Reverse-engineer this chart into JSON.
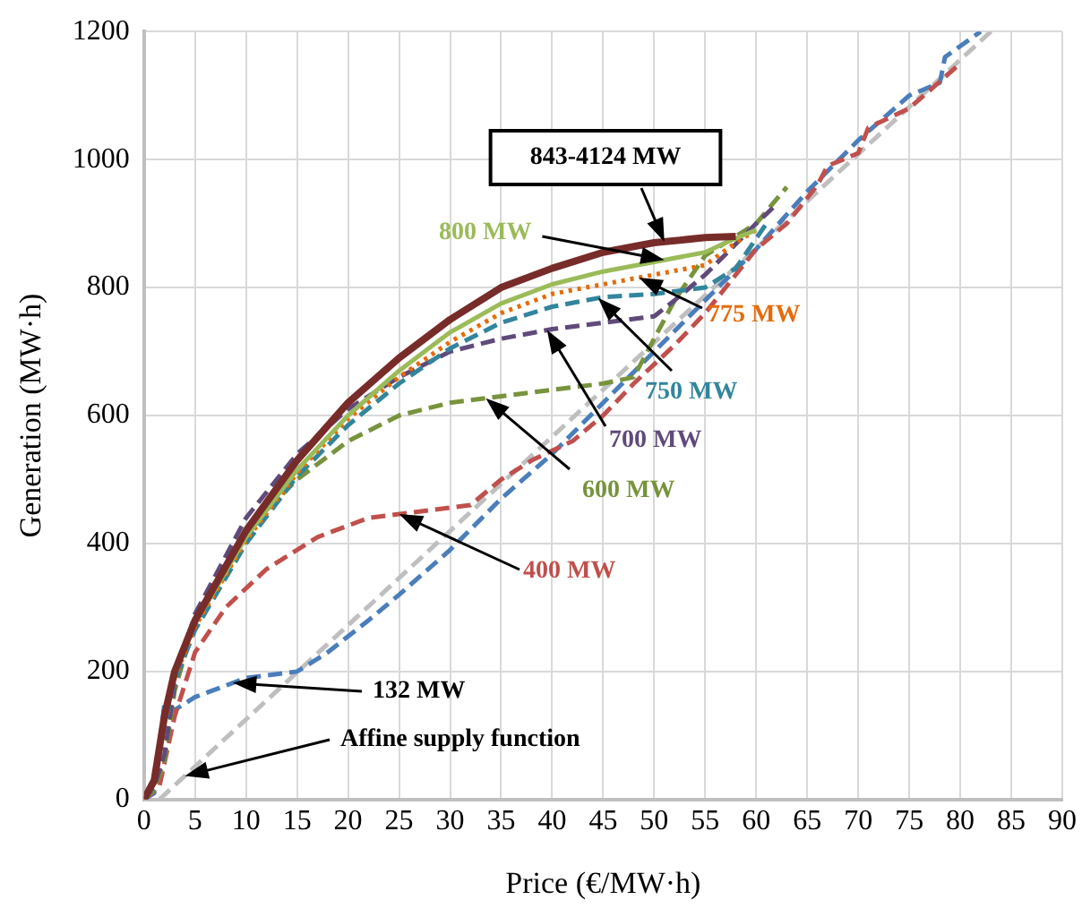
{
  "chart_data": {
    "type": "line",
    "xlabel": "Price (€/MW·h)",
    "ylabel": "Generation (MW·h)",
    "xlim": [
      0,
      90
    ],
    "xticks": [
      0,
      5,
      10,
      15,
      20,
      25,
      30,
      35,
      40,
      45,
      50,
      55,
      60,
      65,
      70,
      75,
      80,
      85,
      90
    ],
    "ylim": [
      0,
      1200
    ],
    "yticks": [
      0,
      200,
      400,
      600,
      800,
      1000,
      1200
    ],
    "grid": true,
    "legend": false,
    "marker": "none",
    "series": [
      {
        "name": "843-4124 MW",
        "color": "#772c2a",
        "line_style": "solid",
        "x": [
          0,
          1,
          2,
          3,
          5,
          10,
          15,
          20,
          25,
          30,
          35,
          40,
          45,
          50,
          55,
          58
        ],
        "values": [
          0,
          30,
          130,
          200,
          280,
          420,
          530,
          620,
          690,
          750,
          800,
          830,
          855,
          870,
          878,
          880
        ]
      },
      {
        "name": "800 MW",
        "color": "#9bbb59",
        "line_style": "solid",
        "x": [
          0,
          1,
          2,
          3,
          5,
          10,
          15,
          20,
          25,
          30,
          35,
          40,
          45,
          50,
          55,
          57,
          60
        ],
        "values": [
          0,
          25,
          125,
          195,
          275,
          410,
          515,
          600,
          670,
          730,
          775,
          805,
          825,
          840,
          855,
          870,
          890
        ]
      },
      {
        "name": "775 MW",
        "color": "#e46c0a",
        "line_style": "dotted",
        "x": [
          0,
          1,
          2,
          3,
          5,
          10,
          15,
          20,
          25,
          30,
          35,
          40,
          45,
          50,
          55,
          58,
          60
        ],
        "values": [
          0,
          25,
          120,
          190,
          270,
          405,
          510,
          595,
          660,
          715,
          760,
          790,
          805,
          820,
          835,
          870,
          890
        ]
      },
      {
        "name": "750 MW",
        "color": "#31859c",
        "line_style": "dashed",
        "x": [
          0,
          1,
          2,
          3,
          5,
          10,
          15,
          20,
          25,
          30,
          35,
          40,
          45,
          50,
          55,
          58,
          61
        ],
        "values": [
          0,
          20,
          115,
          185,
          265,
          400,
          505,
          585,
          650,
          705,
          745,
          770,
          785,
          790,
          800,
          830,
          900
        ]
      },
      {
        "name": "700 MW",
        "color": "#604a7b",
        "line_style": "dashed",
        "x": [
          0,
          1,
          2,
          3,
          5,
          10,
          15,
          20,
          25,
          30,
          35,
          40,
          45,
          50,
          52,
          55,
          60,
          62
        ],
        "values": [
          0,
          20,
          70,
          180,
          290,
          440,
          540,
          610,
          660,
          700,
          720,
          735,
          745,
          755,
          780,
          820,
          900,
          930
        ]
      },
      {
        "name": "600 MW",
        "color": "#77933c",
        "line_style": "dashed",
        "x": [
          0,
          1,
          2,
          3,
          5,
          10,
          15,
          20,
          25,
          30,
          35,
          40,
          45,
          48,
          50,
          52,
          55,
          60,
          63
        ],
        "values": [
          0,
          15,
          60,
          170,
          280,
          420,
          500,
          560,
          600,
          620,
          630,
          640,
          650,
          660,
          720,
          780,
          850,
          900,
          957
        ]
      },
      {
        "name": "400 MW",
        "color": "#c0504d",
        "line_style": "dashed",
        "x": [
          0,
          1.5,
          3,
          5,
          8,
          12,
          17,
          22,
          27,
          32,
          35,
          38,
          42,
          45,
          48,
          50,
          52,
          55,
          58,
          60,
          63,
          66,
          67,
          70,
          71,
          75,
          80
        ],
        "values": [
          0,
          20,
          130,
          230,
          300,
          360,
          410,
          440,
          450,
          460,
          500,
          530,
          560,
          600,
          650,
          680,
          710,
          760,
          820,
          860,
          900,
          960,
          990,
          1010,
          1050,
          1080,
          1150
        ]
      },
      {
        "name": "132 MW",
        "color": "#4a7ebb",
        "line_style": "dashed",
        "x": [
          0,
          1,
          2,
          3,
          5,
          10,
          15,
          18,
          22,
          25,
          30,
          35,
          40,
          45,
          50,
          55,
          60,
          65,
          70,
          75,
          78,
          78.5,
          82
        ],
        "values": [
          0,
          10,
          150,
          140,
          160,
          190,
          200,
          230,
          280,
          320,
          390,
          470,
          540,
          620,
          700,
          780,
          860,
          950,
          1030,
          1100,
          1120,
          1160,
          1200
        ]
      },
      {
        "name": "Affine supply function",
        "color": "#bfbfbf",
        "line_style": "dashed",
        "x": [
          1.5,
          83
        ],
        "values": [
          0,
          1200
        ]
      }
    ]
  }
}
